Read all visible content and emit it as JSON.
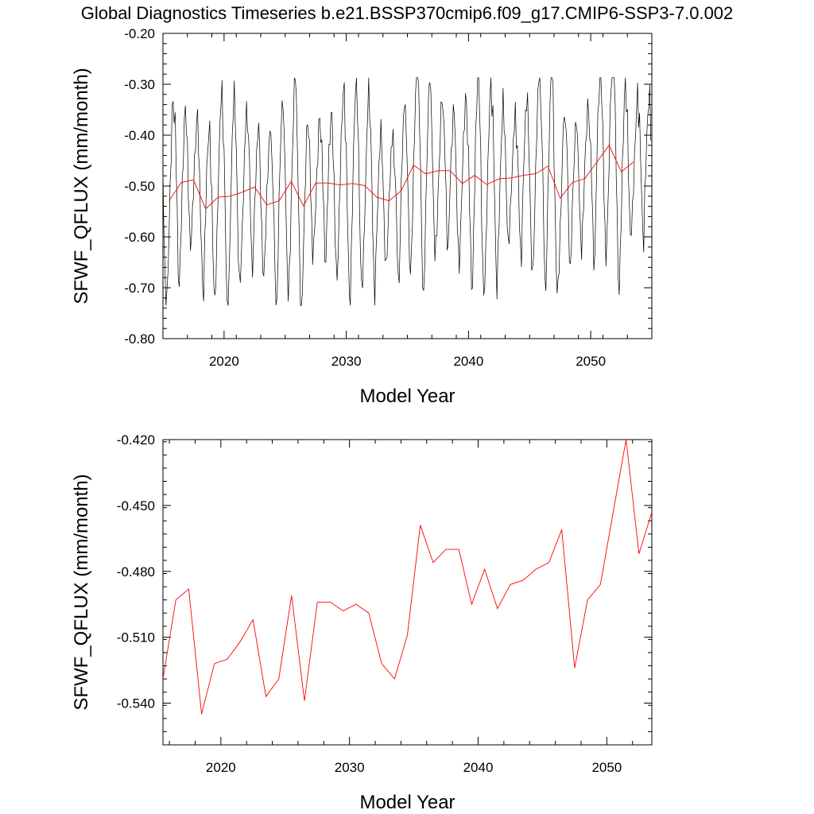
{
  "figure_title": "Global Diagnostics Timeseries b.e21.BSSP370cmip6.f09_g17.CMIP6-SSP3-7.0.002",
  "chart_data": [
    {
      "type": "line",
      "title": "",
      "xlabel": "Model Year",
      "ylabel": "SFWF_QFLUX (mm/month)",
      "xlim": [
        2015.0,
        2055.0
      ],
      "ylim": [
        -0.8,
        -0.2
      ],
      "xticks": [
        2020,
        2030,
        2040,
        2050
      ],
      "xtick_labels": [
        "2020",
        "2030",
        "2040",
        "2050"
      ],
      "yticks": [
        -0.8,
        -0.7,
        -0.6,
        -0.5,
        -0.4,
        -0.3,
        -0.2
      ],
      "ytick_labels": [
        "-0.80",
        "-0.70",
        "-0.60",
        "-0.50",
        "-0.40",
        "-0.30",
        "-0.20"
      ],
      "grid": false,
      "series": [
        {
          "role": "monthly",
          "color": "#000000",
          "monthly_pattern_1": [
            -0.46,
            -0.55,
            -0.62,
            -0.66,
            -0.63,
            -0.58,
            -0.52,
            -0.46,
            -0.41,
            -0.36,
            -0.34,
            -0.4
          ],
          "monthly_pattern_2": [
            -0.44,
            -0.52,
            -0.6,
            -0.68,
            -0.7,
            -0.62,
            -0.55,
            -0.48,
            -0.43,
            -0.38,
            -0.36,
            -0.42
          ],
          "min_value": -0.735,
          "max_value": -0.287
        },
        {
          "role": "annual-mean",
          "color": "#ff0000",
          "x": [
            2015.5,
            2016.5,
            2017.5,
            2018.5,
            2019.5,
            2020.5,
            2021.5,
            2022.5,
            2023.5,
            2024.5,
            2025.5,
            2026.5,
            2027.5,
            2028.5,
            2029.5,
            2030.5,
            2031.5,
            2032.5,
            2033.5,
            2034.5,
            2035.5,
            2036.5,
            2037.5,
            2038.5,
            2039.5,
            2040.5,
            2041.5,
            2042.5,
            2043.5,
            2044.5,
            2045.5,
            2046.5,
            2047.5,
            2048.5,
            2049.5,
            2050.5,
            2051.5,
            2052.5,
            2053.5
          ],
          "values": [
            -0.529,
            -0.493,
            -0.488,
            -0.545,
            -0.522,
            -0.52,
            -0.512,
            -0.502,
            -0.537,
            -0.529,
            -0.491,
            -0.539,
            -0.494,
            -0.494,
            -0.498,
            -0.495,
            -0.499,
            -0.522,
            -0.529,
            -0.509,
            -0.459,
            -0.476,
            -0.47,
            -0.47,
            -0.495,
            -0.479,
            -0.497,
            -0.486,
            -0.484,
            -0.479,
            -0.476,
            -0.461,
            -0.524,
            -0.493,
            -0.486,
            -0.453,
            -0.42,
            -0.472,
            -0.453
          ]
        }
      ]
    },
    {
      "type": "line",
      "title": "",
      "xlabel": "Model Year",
      "ylabel": "SFWF_QFLUX (mm/month)",
      "xlim": [
        2015.5,
        2053.5
      ],
      "ylim": [
        -0.559,
        -0.42
      ],
      "xticks": [
        2020,
        2030,
        2040,
        2050
      ],
      "xtick_labels": [
        "2020",
        "2030",
        "2040",
        "2050"
      ],
      "yticks": [
        -0.54,
        -0.51,
        -0.48,
        -0.45,
        -0.42
      ],
      "ytick_labels": [
        "-0.540",
        "-0.510",
        "-0.480",
        "-0.450",
        "-0.420"
      ],
      "grid": false,
      "series": [
        {
          "role": "annual-mean",
          "color": "#ff0000",
          "x": [
            2015.5,
            2016.5,
            2017.5,
            2018.5,
            2019.5,
            2020.5,
            2021.5,
            2022.5,
            2023.5,
            2024.5,
            2025.5,
            2026.5,
            2027.5,
            2028.5,
            2029.5,
            2030.5,
            2031.5,
            2032.5,
            2033.5,
            2034.5,
            2035.5,
            2036.5,
            2037.5,
            2038.5,
            2039.5,
            2040.5,
            2041.5,
            2042.5,
            2043.5,
            2044.5,
            2045.5,
            2046.5,
            2047.5,
            2048.5,
            2049.5,
            2050.5,
            2051.5,
            2052.5,
            2053.5
          ],
          "values": [
            -0.529,
            -0.493,
            -0.488,
            -0.545,
            -0.522,
            -0.52,
            -0.512,
            -0.502,
            -0.537,
            -0.529,
            -0.491,
            -0.539,
            -0.494,
            -0.494,
            -0.498,
            -0.495,
            -0.499,
            -0.522,
            -0.529,
            -0.509,
            -0.459,
            -0.476,
            -0.47,
            -0.47,
            -0.495,
            -0.479,
            -0.497,
            -0.486,
            -0.484,
            -0.479,
            -0.476,
            -0.461,
            -0.524,
            -0.493,
            -0.486,
            -0.453,
            -0.42,
            -0.472,
            -0.453
          ]
        }
      ]
    }
  ]
}
